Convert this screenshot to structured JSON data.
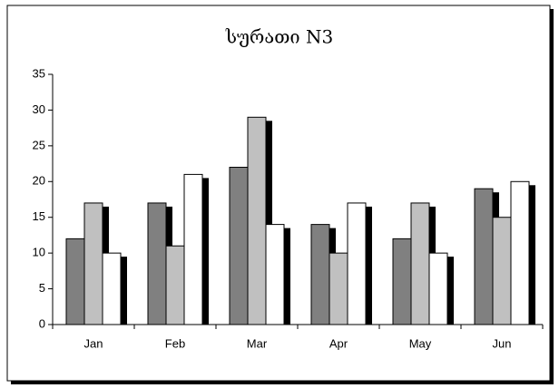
{
  "chart_data": {
    "type": "bar",
    "title": "სურათი N3",
    "categories": [
      "Jan",
      "Feb",
      "Mar",
      "Apr",
      "May",
      "Jun"
    ],
    "series": [
      {
        "color": "#808080",
        "values": [
          12,
          17,
          22,
          14,
          12,
          19
        ]
      },
      {
        "color": "#c0c0c0",
        "values": [
          17,
          11,
          29,
          10,
          17,
          15
        ]
      },
      {
        "color": "#ffffff",
        "values": [
          10,
          21,
          14,
          17,
          10,
          20
        ]
      }
    ],
    "ylim": [
      0,
      35
    ],
    "yticks": [
      0,
      5,
      10,
      15,
      20,
      25,
      30,
      35
    ],
    "grid": false,
    "shadow": true
  }
}
